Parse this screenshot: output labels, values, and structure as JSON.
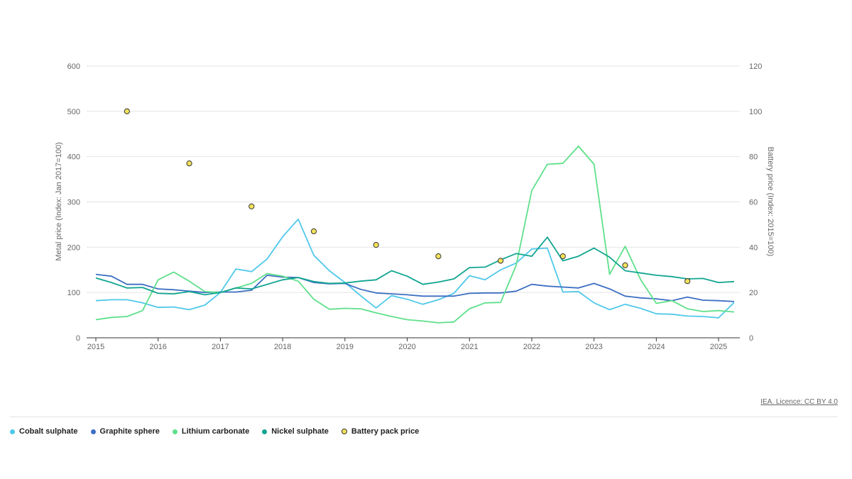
{
  "chart_data": {
    "type": "line",
    "x_ticks": [
      "2015",
      "2016",
      "2017",
      "2018",
      "2019",
      "2020",
      "2021",
      "2022",
      "2023",
      "2024",
      "2025"
    ],
    "ylabel_left": "Metal price (Index: Jan 2017=100)",
    "ylabel_right": "Battery price (Index: 2015=100)",
    "ylim_left": [
      0,
      600
    ],
    "ylim_right": [
      0,
      120
    ],
    "y_ticks_left": [
      "0",
      "100",
      "200",
      "300",
      "400",
      "500",
      "600"
    ],
    "y_ticks_right": [
      "0",
      "20",
      "40",
      "60",
      "80",
      "100",
      "120"
    ],
    "grid": "horizontal",
    "legend_position": "bottom-left",
    "series": [
      {
        "name": "Cobalt sulphate",
        "color": "#4fc8ea",
        "axis": "left",
        "kind": "line",
        "x": [
          2015.0,
          2015.25,
          2015.5,
          2015.75,
          2016.0,
          2016.25,
          2016.5,
          2016.75,
          2017.0,
          2017.25,
          2017.5,
          2017.75,
          2018.0,
          2018.25,
          2018.5,
          2018.75,
          2019.0,
          2019.25,
          2019.5,
          2019.75,
          2020.0,
          2020.25,
          2020.5,
          2020.75,
          2021.0,
          2021.25,
          2021.5,
          2021.75,
          2022.0,
          2022.25,
          2022.5,
          2022.75,
          2023.0,
          2023.25,
          2023.5,
          2023.75,
          2024.0,
          2024.25,
          2024.5,
          2024.75,
          2025.0,
          2025.25
        ],
        "y": [
          82,
          84,
          84,
          77,
          67,
          68,
          62,
          72,
          100,
          152,
          146,
          174,
          223,
          262,
          182,
          148,
          122,
          93,
          66,
          93,
          85,
          74,
          84,
          98,
          137,
          128,
          150,
          165,
          196,
          198,
          101,
          102,
          77,
          62,
          74,
          65,
          53,
          52,
          48,
          47,
          44,
          78
        ]
      },
      {
        "name": "Graphite sphere",
        "color": "#3d6fc2",
        "axis": "left",
        "kind": "line",
        "x": [
          2015.0,
          2015.25,
          2015.5,
          2015.75,
          2016.0,
          2016.25,
          2016.5,
          2016.75,
          2017.0,
          2017.25,
          2017.5,
          2017.75,
          2018.0,
          2018.25,
          2018.5,
          2018.75,
          2019.0,
          2019.25,
          2019.5,
          2019.75,
          2020.0,
          2020.25,
          2020.5,
          2020.75,
          2021.0,
          2021.25,
          2021.5,
          2021.75,
          2022.0,
          2022.25,
          2022.5,
          2022.75,
          2023.0,
          2023.25,
          2023.5,
          2023.75,
          2024.0,
          2024.25,
          2024.5,
          2024.75,
          2025.0,
          2025.25
        ],
        "y": [
          140,
          136,
          118,
          118,
          108,
          106,
          103,
          100,
          101,
          101,
          105,
          138,
          134,
          133,
          122,
          119,
          120,
          107,
          99,
          97,
          95,
          92,
          92,
          92,
          98,
          99,
          99,
          103,
          118,
          114,
          112,
          110,
          120,
          108,
          92,
          88,
          86,
          82,
          90,
          83,
          82,
          80
        ]
      },
      {
        "name": "Lithium carbonate",
        "color": "#5ee08a",
        "axis": "left",
        "kind": "line",
        "x": [
          2015.0,
          2015.25,
          2015.5,
          2015.75,
          2016.0,
          2016.25,
          2016.5,
          2016.75,
          2017.0,
          2017.25,
          2017.5,
          2017.75,
          2018.0,
          2018.25,
          2018.5,
          2018.75,
          2019.0,
          2019.25,
          2019.5,
          2019.75,
          2020.0,
          2020.25,
          2020.5,
          2020.75,
          2021.0,
          2021.25,
          2021.5,
          2021.75,
          2022.0,
          2022.25,
          2022.5,
          2022.75,
          2023.0,
          2023.25,
          2023.5,
          2023.75,
          2024.0,
          2024.25,
          2024.5,
          2024.75,
          2025.0,
          2025.25
        ],
        "y": [
          40,
          45,
          47,
          60,
          128,
          145,
          125,
          102,
          100,
          110,
          120,
          142,
          136,
          125,
          85,
          63,
          65,
          64,
          55,
          47,
          40,
          37,
          33,
          35,
          64,
          77,
          78,
          160,
          325,
          383,
          385,
          423,
          383,
          140,
          202,
          128,
          76,
          82,
          64,
          58,
          60,
          57
        ]
      },
      {
        "name": "Nickel sulphate",
        "color": "#12a591",
        "axis": "left",
        "kind": "line",
        "x": [
          2015.0,
          2015.25,
          2015.5,
          2015.75,
          2016.0,
          2016.25,
          2016.5,
          2016.75,
          2017.0,
          2017.25,
          2017.5,
          2017.75,
          2018.0,
          2018.25,
          2018.5,
          2018.75,
          2019.0,
          2019.25,
          2019.5,
          2019.75,
          2020.0,
          2020.25,
          2020.5,
          2020.75,
          2021.0,
          2021.25,
          2021.5,
          2021.75,
          2022.0,
          2022.25,
          2022.5,
          2022.75,
          2023.0,
          2023.25,
          2023.5,
          2023.75,
          2024.0,
          2024.25,
          2024.5,
          2024.75,
          2025.0,
          2025.25
        ],
        "y": [
          132,
          122,
          110,
          111,
          98,
          97,
          102,
          95,
          100,
          110,
          108,
          118,
          128,
          133,
          124,
          120,
          121,
          125,
          128,
          148,
          136,
          118,
          123,
          130,
          155,
          156,
          172,
          186,
          180,
          222,
          170,
          180,
          198,
          178,
          148,
          143,
          138,
          135,
          130,
          131,
          122,
          124
        ]
      },
      {
        "name": "Battery pack price",
        "color": "#f3e15a",
        "axis": "right",
        "kind": "scatter",
        "x": [
          2015.5,
          2016.5,
          2017.5,
          2018.5,
          2019.5,
          2020.5,
          2021.5,
          2022.5,
          2023.5,
          2024.5
        ],
        "y": [
          100,
          77,
          58,
          47,
          41,
          36,
          34,
          36,
          32,
          25
        ]
      }
    ]
  },
  "credit": "IEA. Licence: CC BY 4.0"
}
